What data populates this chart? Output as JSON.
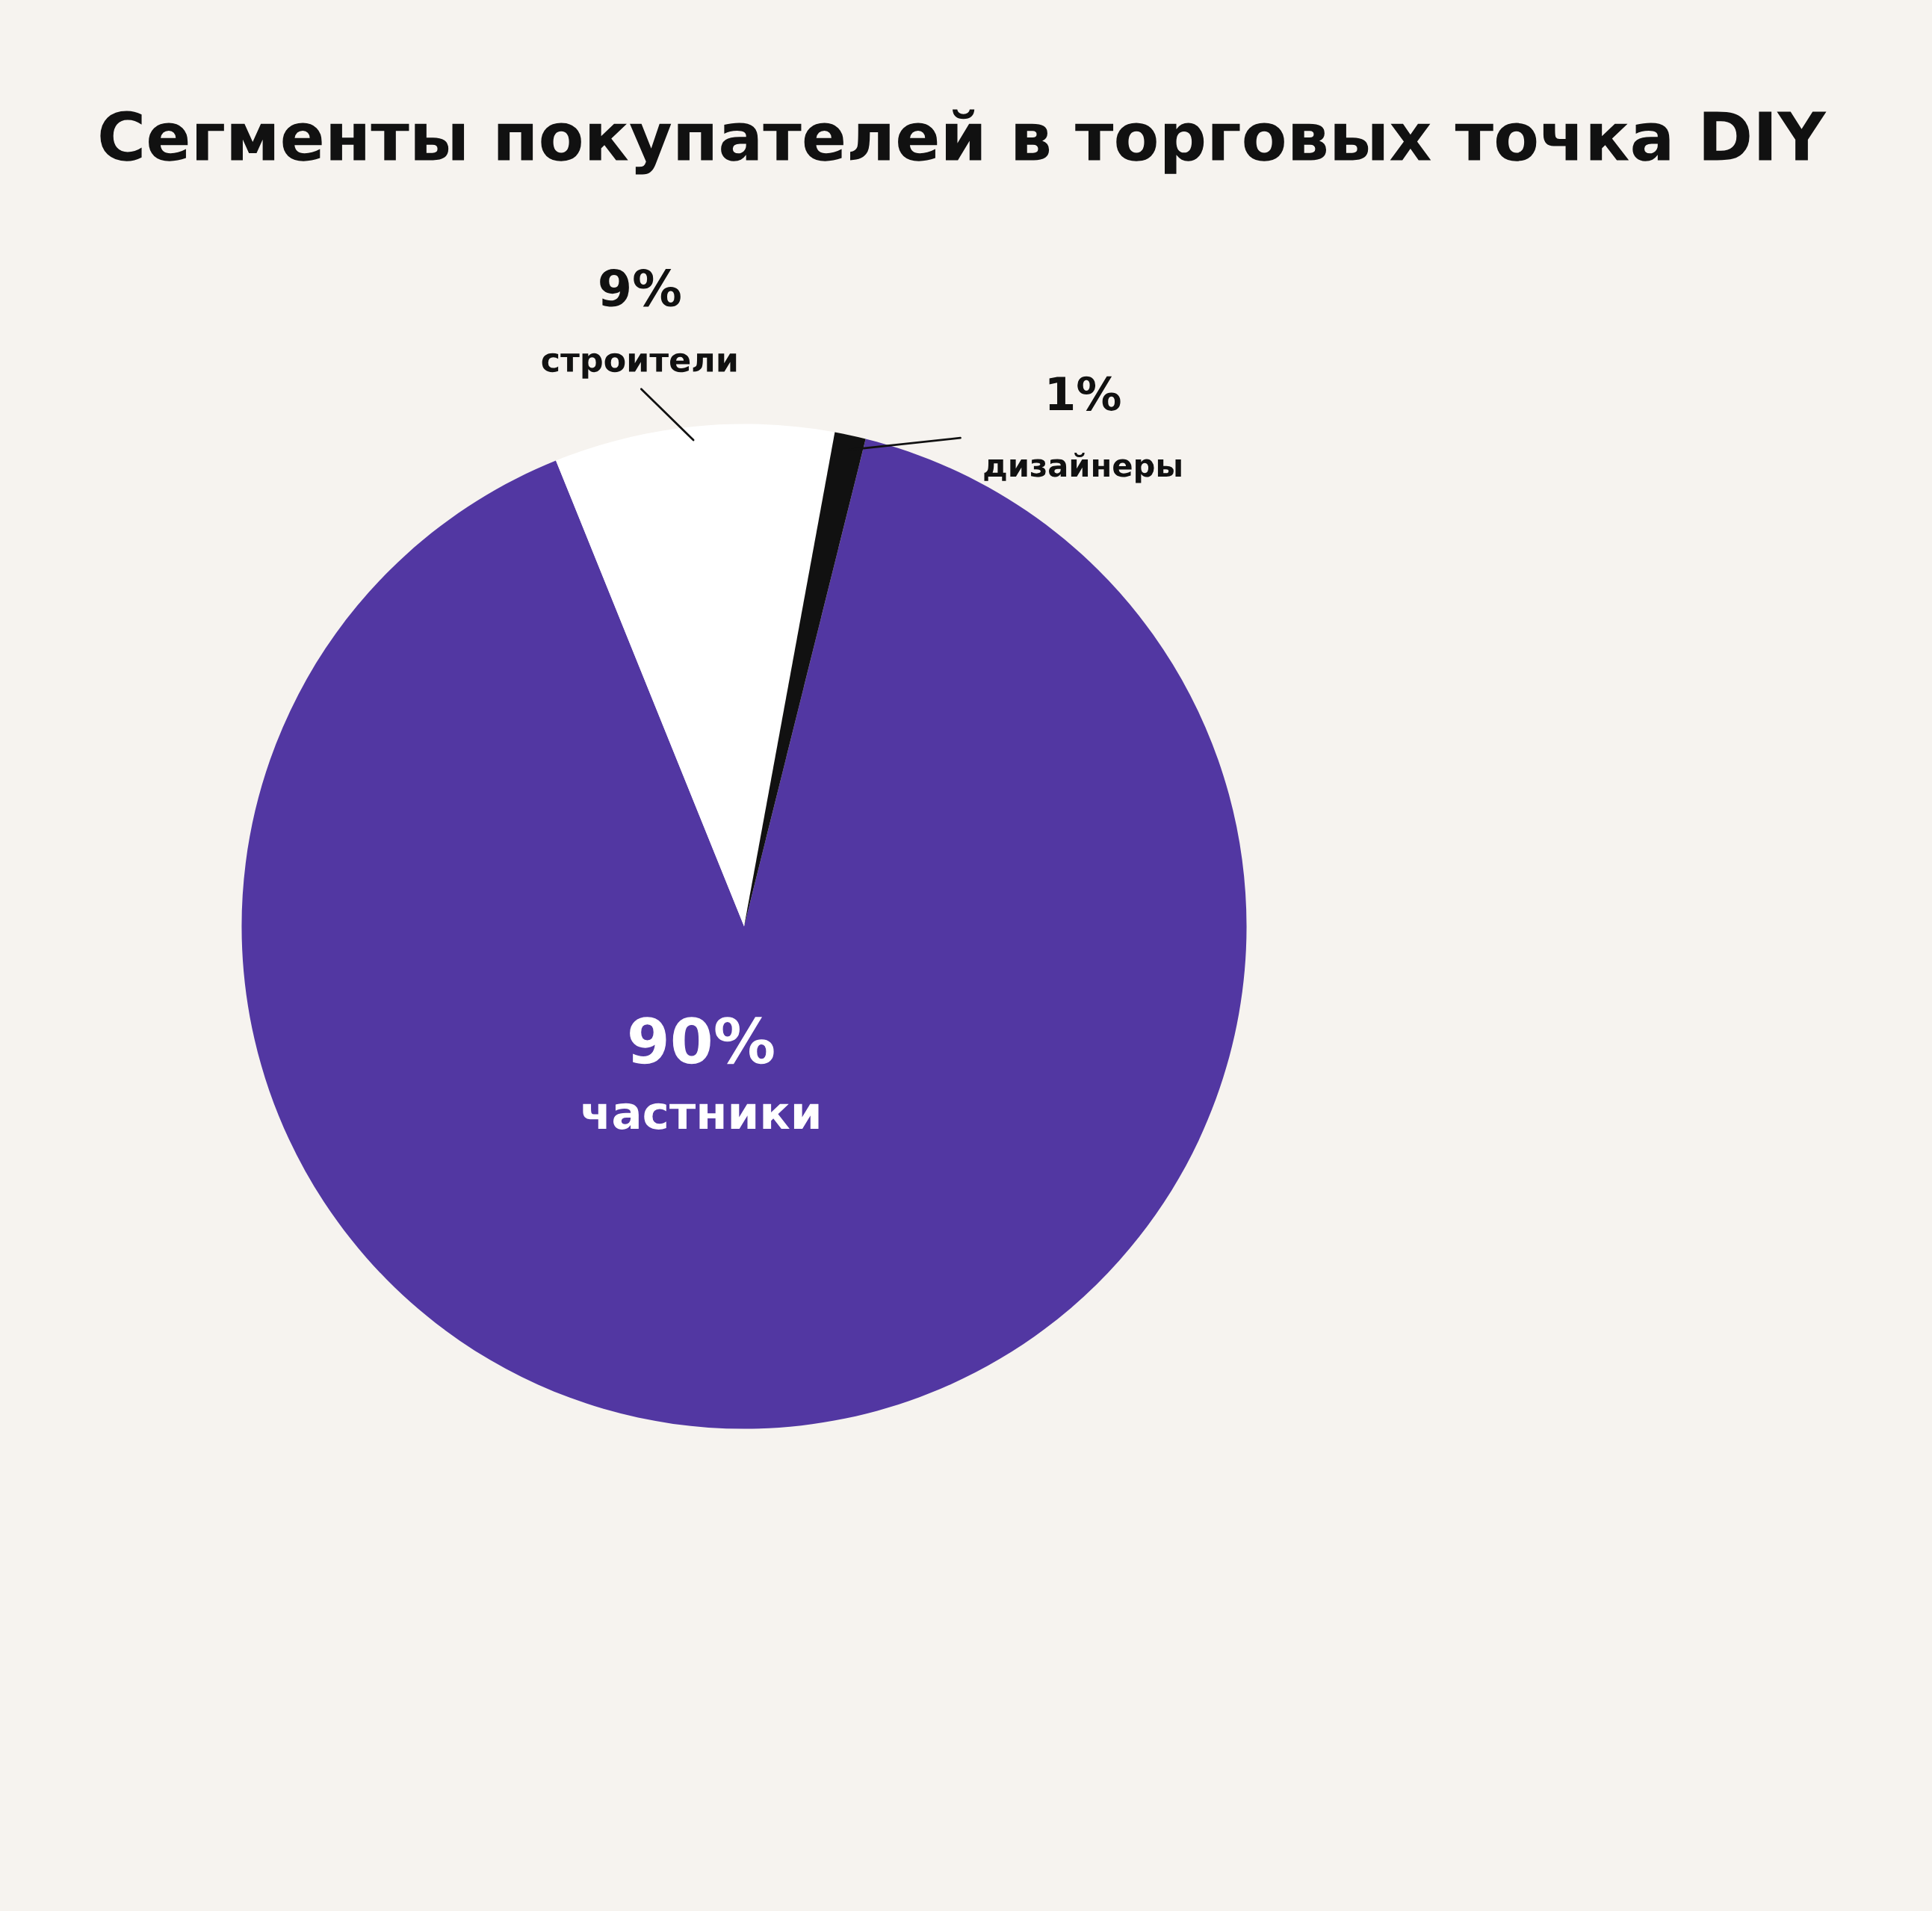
{
  "chart_data": {
    "type": "pie",
    "title": "Сегменты покупателей в торговых точка DIY",
    "categories": [
      "частники",
      "строители",
      "дизайнеры"
    ],
    "values": [
      90,
      9,
      1
    ],
    "value_labels": [
      "90%",
      "9%",
      "1%"
    ],
    "colors": [
      "#5237a2",
      "#ffffff",
      "#111111"
    ],
    "legend": false
  }
}
